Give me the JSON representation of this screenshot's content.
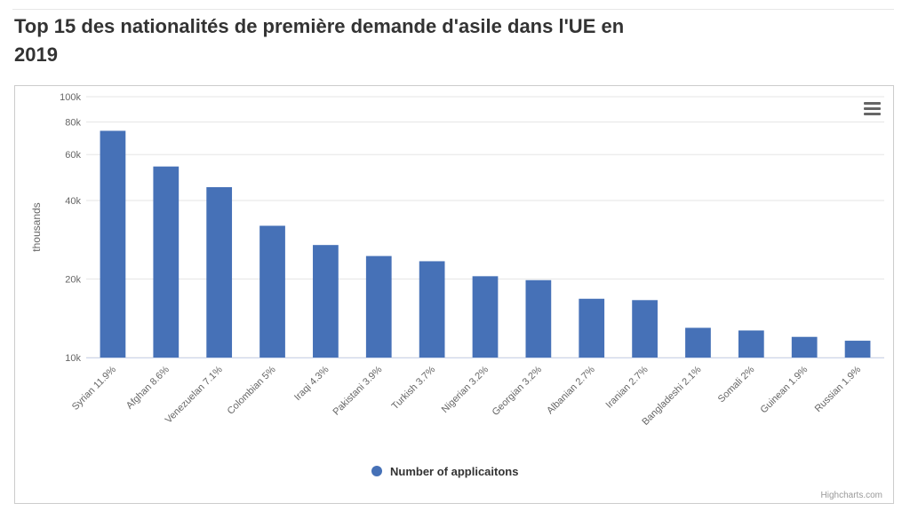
{
  "title": "Top 15 des nationalités de première demande d'asile dans l'UE en 2019",
  "menu": {
    "icon": "hamburger-menu-icon"
  },
  "credits": "Highcharts.com",
  "colors": {
    "series": "#4671b7",
    "grid": "#e6e6e6",
    "axis_text": "#666666",
    "title": "#333333"
  },
  "chart_data": {
    "type": "bar",
    "categories": [
      "Syrian 11.9%",
      "Afghan 8.6%",
      "Venezuelan 7.1%",
      "Colombian 5%",
      "Iraqi 4.3%",
      "Pakistani 3.9%",
      "Turkish 3.7%",
      "Nigerian 3.2%",
      "Georgian 3.2%",
      "Albanian 2.7%",
      "Iranian 2.7%",
      "Bangladeshi 2.1%",
      "Somali 2%",
      "Guinean 1.9%",
      "Russian 1.9%"
    ],
    "series": [
      {
        "name": "Number of applicaitons",
        "values": [
          74000,
          54000,
          45000,
          32000,
          27000,
          24500,
          23400,
          20500,
          19800,
          16800,
          16600,
          13000,
          12700,
          12000,
          11600
        ]
      }
    ],
    "ylabel": "thousands",
    "xlabel": "",
    "yscale": "log",
    "ylim": [
      10000,
      100000
    ],
    "yticks": [
      10000,
      20000,
      40000,
      60000,
      80000,
      100000
    ],
    "ytick_labels": [
      "10k",
      "20k",
      "40k",
      "60k",
      "80k",
      "100k"
    ],
    "grid": true,
    "legend_position": "bottom-center"
  }
}
